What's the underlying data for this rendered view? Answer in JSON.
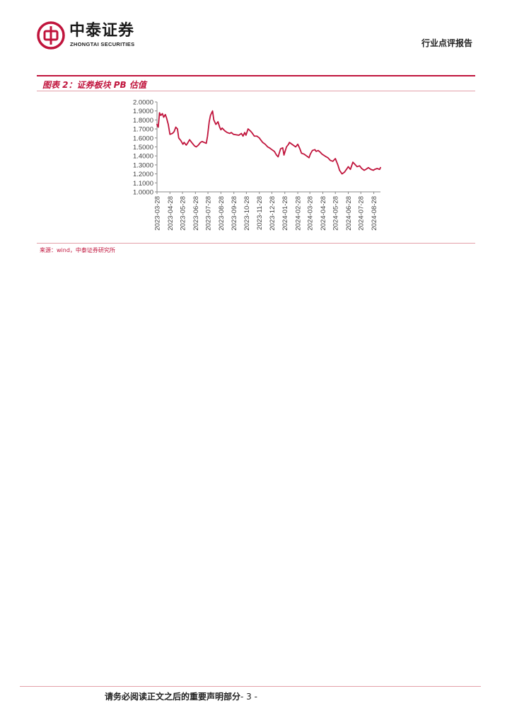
{
  "header": {
    "logo_cn": "中泰证券",
    "logo_en": "ZHONGTAI SECURITIES",
    "report_type": "行业点评报告"
  },
  "figure": {
    "title": "图表 2：证券板块 PB 估值",
    "source": "来源：wind，中泰证券研究所"
  },
  "chart_data": {
    "type": "line",
    "title": "",
    "xlabel": "",
    "ylabel": "",
    "ylim": [
      1.0,
      2.0
    ],
    "yticks": [
      "2.0000",
      "1.9000",
      "1.8000",
      "1.7000",
      "1.6000",
      "1.5000",
      "1.4000",
      "1.3000",
      "1.2000",
      "1.1000",
      "1.0000"
    ],
    "xticks": [
      "2023-03-28",
      "2023-04-28",
      "2023-05-28",
      "2023-06-28",
      "2023-07-28",
      "2023-08-28",
      "2023-09-28",
      "2023-10-28",
      "2023-11-28",
      "2023-12-28",
      "2024-01-28",
      "2024-02-28",
      "2024-03-28",
      "2024-04-28",
      "2024-05-28",
      "2024-06-28",
      "2024-07-28",
      "2024-08-28"
    ],
    "grid": false,
    "legend": "none",
    "series_color": "#c0143c",
    "x": [
      "2023-03-28",
      "2023-03-31",
      "2023-04-03",
      "2023-04-06",
      "2023-04-10",
      "2023-04-13",
      "2023-04-17",
      "2023-04-20",
      "2023-04-24",
      "2023-04-28",
      "2023-05-04",
      "2023-05-08",
      "2023-05-12",
      "2023-05-16",
      "2023-05-19",
      "2023-05-24",
      "2023-05-29",
      "2023-06-01",
      "2023-06-06",
      "2023-06-09",
      "2023-06-14",
      "2023-06-19",
      "2023-06-26",
      "2023-06-30",
      "2023-07-05",
      "2023-07-10",
      "2023-07-14",
      "2023-07-19",
      "2023-07-24",
      "2023-07-27",
      "2023-07-31",
      "2023-08-03",
      "2023-08-08",
      "2023-08-11",
      "2023-08-16",
      "2023-08-21",
      "2023-08-25",
      "2023-08-28",
      "2023-08-31",
      "2023-09-06",
      "2023-09-12",
      "2023-09-18",
      "2023-09-22",
      "2023-09-27",
      "2023-10-10",
      "2023-10-16",
      "2023-10-20",
      "2023-10-24",
      "2023-10-27",
      "2023-11-01",
      "2023-11-06",
      "2023-11-10",
      "2023-11-16",
      "2023-11-22",
      "2023-11-28",
      "2023-12-01",
      "2023-12-06",
      "2023-12-12",
      "2023-12-18",
      "2023-12-22",
      "2023-12-28",
      "2024-01-03",
      "2024-01-08",
      "2024-01-12",
      "2024-01-18",
      "2024-01-23",
      "2024-01-26",
      "2024-02-01",
      "2024-02-06",
      "2024-02-08",
      "2024-02-20",
      "2024-02-23",
      "2024-02-28",
      "2024-03-04",
      "2024-03-08",
      "2024-03-14",
      "2024-03-20",
      "2024-03-26",
      "2024-03-29",
      "2024-04-03",
      "2024-04-09",
      "2024-04-12",
      "2024-04-17",
      "2024-04-22",
      "2024-04-26",
      "2024-05-06",
      "2024-05-10",
      "2024-05-16",
      "2024-05-22",
      "2024-05-28",
      "2024-06-03",
      "2024-06-07",
      "2024-06-13",
      "2024-06-19",
      "2024-06-25",
      "2024-06-28",
      "2024-07-03",
      "2024-07-09",
      "2024-07-15",
      "2024-07-19",
      "2024-07-25",
      "2024-07-30",
      "2024-08-05",
      "2024-08-09",
      "2024-08-15",
      "2024-08-21",
      "2024-08-27",
      "2024-08-30",
      "2024-09-05",
      "2024-09-11",
      "2024-09-13"
    ],
    "series": [
      {
        "values": [
          1.75,
          1.72,
          1.88,
          1.85,
          1.87,
          1.83,
          1.86,
          1.82,
          1.75,
          1.64,
          1.65,
          1.67,
          1.72,
          1.7,
          1.6,
          1.57,
          1.53,
          1.55,
          1.52,
          1.54,
          1.58,
          1.55,
          1.51,
          1.5,
          1.52,
          1.55,
          1.56,
          1.55,
          1.54,
          1.62,
          1.78,
          1.85,
          1.9,
          1.8,
          1.75,
          1.78,
          1.72,
          1.69,
          1.71,
          1.68,
          1.66,
          1.65,
          1.66,
          1.64,
          1.63,
          1.65,
          1.62,
          1.66,
          1.63,
          1.7,
          1.68,
          1.66,
          1.62,
          1.62,
          1.6,
          1.58,
          1.55,
          1.53,
          1.5,
          1.49,
          1.47,
          1.45,
          1.41,
          1.39,
          1.48,
          1.49,
          1.41,
          1.5,
          1.53,
          1.55,
          1.51,
          1.5,
          1.53,
          1.48,
          1.43,
          1.42,
          1.4,
          1.38,
          1.42,
          1.46,
          1.47,
          1.45,
          1.46,
          1.44,
          1.42,
          1.39,
          1.38,
          1.35,
          1.34,
          1.37,
          1.3,
          1.24,
          1.2,
          1.22,
          1.26,
          1.28,
          1.25,
          1.33,
          1.3,
          1.28,
          1.29,
          1.26,
          1.24,
          1.25,
          1.27,
          1.25,
          1.24,
          1.25,
          1.26,
          1.25,
          1.27
        ]
      }
    ]
  },
  "footer": {
    "disclaimer": "请务必阅读正文之后的重要声明部分",
    "page": "- 3 -"
  }
}
